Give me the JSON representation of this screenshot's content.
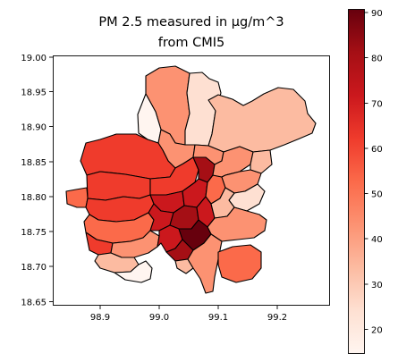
{
  "title_line1": "PM 2.5 measured in µg/m^3",
  "title_line2": "from CMI5",
  "x_ticks": [
    "98.9",
    "99.0",
    "99.1",
    "99.2"
  ],
  "y_ticks": [
    "19.00",
    "18.95",
    "18.90",
    "18.85",
    "18.80",
    "18.75",
    "18.70",
    "18.65"
  ],
  "colorbar": {
    "ticks": [
      "20",
      "30",
      "40",
      "50",
      "60",
      "70",
      "80",
      "90"
    ],
    "range": [
      15,
      91
    ],
    "colormap": "Reds",
    "colors": [
      "#fff5f0",
      "#fee0d2",
      "#fcbba1",
      "#fc9272",
      "#fb6a4a",
      "#ef3b2c",
      "#cb181d",
      "#a50f15",
      "#67000d"
    ]
  },
  "map": {
    "lon_range": [
      98.85,
      99.24
    ],
    "lat_range": [
      18.645,
      19.005
    ],
    "edge_color": "#000000"
  }
}
